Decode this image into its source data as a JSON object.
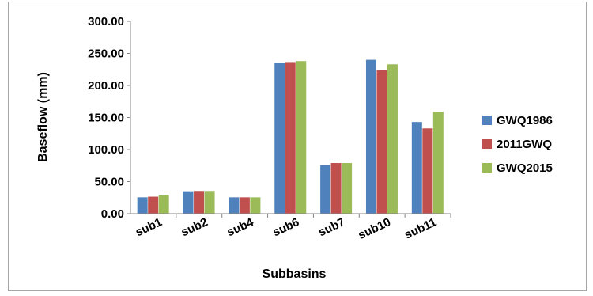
{
  "chart_data": {
    "type": "bar",
    "title": "",
    "xlabel": "Subbasins",
    "ylabel": "Baseflow (mm)",
    "ylim": [
      0,
      300
    ],
    "yticks": [
      "0.00",
      "50.00",
      "100.00",
      "150.00",
      "200.00",
      "250.00",
      "300.00"
    ],
    "grid": false,
    "legend_position": "right",
    "categories": [
      "sub1",
      "sub2",
      "sub4",
      "sub6",
      "sub7",
      "sub10",
      "sub11"
    ],
    "series": [
      {
        "name": "GWQ1986",
        "color": "#4f81bd",
        "values": [
          25.5,
          35.0,
          25.5,
          235.0,
          76.0,
          240.0,
          143.0
        ]
      },
      {
        "name": "2011GWQ",
        "color": "#c0504d",
        "values": [
          26.5,
          35.5,
          25.5,
          236.5,
          79.0,
          224.0,
          133.0
        ]
      },
      {
        "name": "GWQ2015",
        "color": "#9bbb59",
        "values": [
          29.5,
          35.5,
          25.5,
          238.0,
          79.0,
          233.0,
          159.0
        ]
      }
    ]
  }
}
